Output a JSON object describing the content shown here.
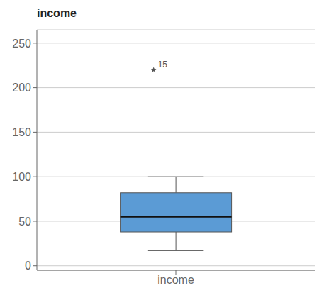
{
  "chart_data": {
    "type": "box",
    "title": "income",
    "categories": [
      "income"
    ],
    "boxes": [
      {
        "med": 55,
        "q1": 38,
        "q3": 82,
        "whislo": 17,
        "whishi": 100,
        "fliers": [
          220
        ]
      }
    ],
    "color": "#5B9BD5",
    "ylim": [
      -5,
      265
    ],
    "yticks": [
      0,
      50,
      100,
      150,
      200,
      250
    ],
    "grid": true,
    "annotations": [
      {
        "text": "15",
        "x": "income",
        "y": 220
      }
    ]
  }
}
